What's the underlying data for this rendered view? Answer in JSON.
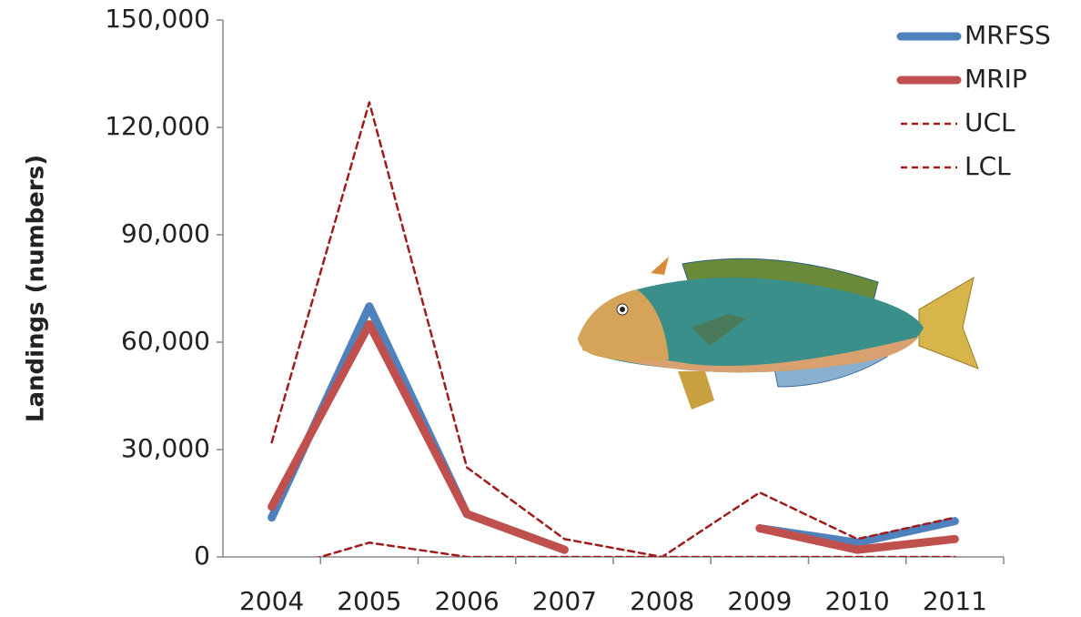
{
  "chart_data": {
    "type": "line",
    "y_label": "Landings (numbers)",
    "categories": [
      "2004",
      "2005",
      "2006",
      "2007",
      "2008",
      "2009",
      "2010",
      "2011"
    ],
    "ylim": [
      0,
      150000
    ],
    "yticks": [
      0,
      {
        "value": 30000,
        "label": "30,000"
      },
      {
        "value": 60000,
        "label": "60,000"
      },
      {
        "value": 90000,
        "label": "90,000"
      },
      {
        "value": 120000,
        "label": "120,000"
      },
      {
        "value": 150000,
        "label": "150,000"
      }
    ],
    "series": [
      {
        "name": "MRFSS",
        "color": "#4f81bd",
        "dashed": false,
        "values": [
          11000,
          70000,
          12000,
          2000,
          null,
          8000,
          4000,
          10000
        ]
      },
      {
        "name": "MRIP",
        "color": "#c0504d",
        "dashed": false,
        "values": [
          14000,
          65000,
          12000,
          2000,
          null,
          8000,
          2000,
          5000
        ]
      },
      {
        "name": "UCL",
        "color": "#a01c1c",
        "dashed": true,
        "values": [
          32000,
          127000,
          25000,
          5000,
          0,
          18000,
          5000,
          11000
        ]
      },
      {
        "name": "LCL",
        "color": "#a01c1c",
        "dashed": true,
        "values": [
          -4000,
          4000,
          0,
          0,
          0,
          0,
          0,
          0
        ]
      }
    ],
    "legend": "top-right"
  }
}
